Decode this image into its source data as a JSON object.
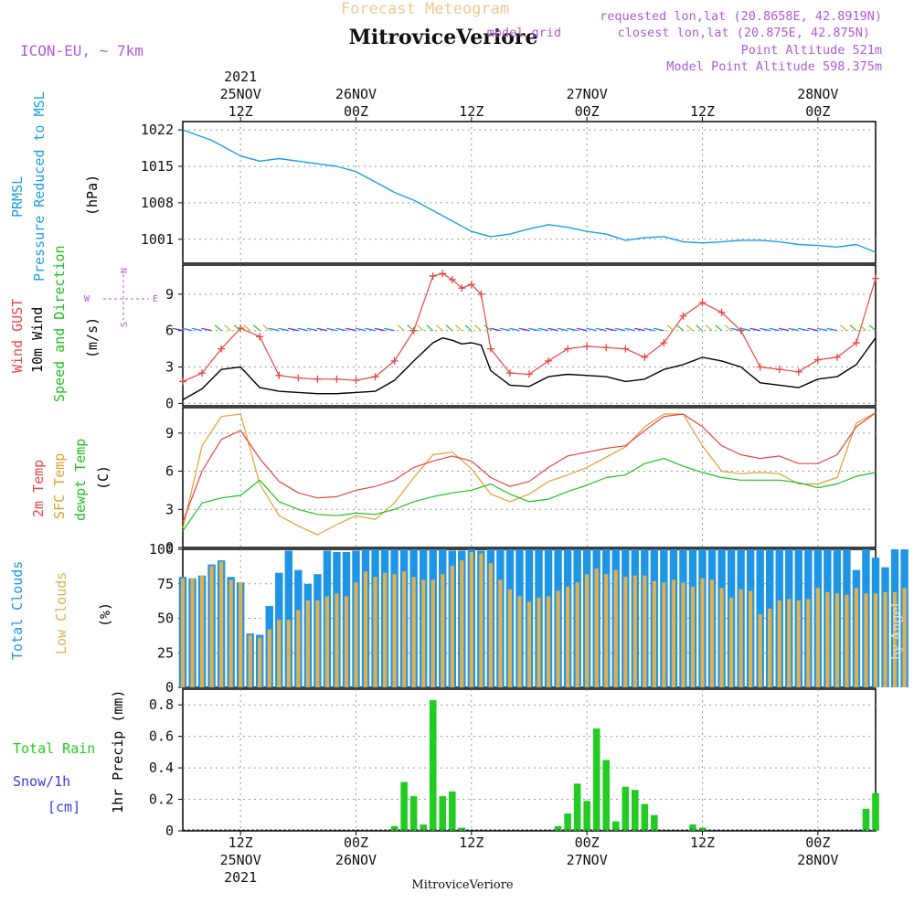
{
  "header": {
    "title": "Forecast Meteogram",
    "location": "MitroviceVeriore",
    "model": "ICON-EU, ~ 7km",
    "requested": "requested lon,lat (20.8658E, 42.8919N)",
    "closest": "closest lon,lat (20.875E, 42.875N)",
    "closest_prefix": "model grid",
    "point_alt": "Point Altitude 521m",
    "model_alt": "Model Point Altitude 598.375m"
  },
  "footer": {
    "location": "MitroviceVeriore",
    "credit": "by Angel"
  },
  "colors": {
    "pressure": "#1a9ee8",
    "gust": "#e84545",
    "wind": "#000000",
    "dir": "#22c022",
    "t2m": "#e84545",
    "sfc": "#e0a030",
    "dewpt": "#22c022",
    "tcc": "#1f95e6",
    "lcc": "#e0b050",
    "rain": "#22cc22",
    "snow": "#3a3ae6",
    "purple": "#b05ad8",
    "title": "#f0c890"
  },
  "time_axis": {
    "hours_range": [
      6,
      78
    ],
    "ticks": [
      {
        "h": 12,
        "top": [
          "2021",
          "25NOV",
          "12Z"
        ],
        "bottom": [
          "12Z",
          "25NOV",
          "2021"
        ]
      },
      {
        "h": 24,
        "top": [
          "26NOV",
          "00Z"
        ],
        "bottom": [
          "00Z",
          "26NOV"
        ]
      },
      {
        "h": 36,
        "top": [
          "12Z"
        ],
        "bottom": [
          "12Z"
        ]
      },
      {
        "h": 48,
        "top": [
          "27NOV",
          "00Z"
        ],
        "bottom": [
          "00Z",
          "27NOV"
        ]
      },
      {
        "h": 60,
        "top": [
          "12Z"
        ],
        "bottom": [
          "12Z"
        ]
      },
      {
        "h": 72,
        "top": [
          "28NOV",
          "00Z"
        ],
        "bottom": [
          "00Z",
          "28NOV"
        ]
      }
    ]
  },
  "panels": {
    "pressure": {
      "labels": [
        "PRMSL",
        "Pressure Reduced to MSL"
      ],
      "unit": "(hPa)"
    },
    "wind": {
      "labels": [
        "Wind GUST",
        "10m Wind",
        "Speed and Direction"
      ],
      "unit": "(m/s)",
      "compass": [
        "N",
        "W",
        "E",
        "S"
      ]
    },
    "temp": {
      "labels": [
        "2m Temp",
        "SFC Temp",
        "dewpt Temp"
      ],
      "unit": "(C)"
    },
    "cloud": {
      "labels": [
        "Total Clouds",
        "Low Clouds"
      ],
      "unit": "(%)"
    },
    "precip": {
      "labels": [
        "Total Rain",
        "Snow/1h",
        "[cm]"
      ],
      "unit": "1hr Precip (mm)"
    }
  },
  "chart_data": [
    {
      "type": "line",
      "title": "PRMSL Pressure Reduced to MSL",
      "ylabel": "(hPa)",
      "ylim": [
        996.4,
        1023.6
      ],
      "yticks": [
        1001,
        1008,
        1015,
        1022
      ],
      "x": [
        6,
        9,
        12,
        14,
        16,
        18,
        20,
        22,
        24,
        26,
        28,
        30,
        32,
        34,
        36,
        38,
        40,
        42,
        44,
        46,
        48,
        50,
        52,
        54,
        56,
        58,
        60,
        62,
        64,
        66,
        68,
        70,
        72,
        74,
        76,
        78
      ],
      "values": [
        1022,
        1020,
        1017,
        1016,
        1016.5,
        1016,
        1015.5,
        1015,
        1014,
        1012,
        1010,
        1008.5,
        1006.5,
        1004.5,
        1002.5,
        1001.5,
        1002,
        1003,
        1003.8,
        1003.3,
        1002.5,
        1002,
        1000.8,
        1001.3,
        1001.5,
        1000.5,
        1000.3,
        1000.5,
        1000.8,
        1000.8,
        1000.5,
        1000,
        999.8,
        999.5,
        1000,
        998.5
      ]
    },
    {
      "type": "line",
      "title": "Wind GUST / 10m Wind Speed and Direction",
      "ylabel": "(m/s)",
      "ylim": [
        -0.2,
        11.4
      ],
      "yticks": [
        0,
        3,
        6,
        9
      ],
      "x": [
        6,
        8,
        10,
        12,
        14,
        16,
        18,
        20,
        22,
        24,
        26,
        28,
        30,
        32,
        33,
        34,
        35,
        36,
        37,
        38,
        40,
        42,
        44,
        46,
        48,
        50,
        52,
        54,
        56,
        58,
        60,
        62,
        64,
        66,
        68,
        70,
        72,
        74,
        76,
        78
      ],
      "series": [
        {
          "name": "Wind GUST",
          "values": [
            1.8,
            2.5,
            4.5,
            6.2,
            5.5,
            2.3,
            2.1,
            2.0,
            2.0,
            1.9,
            2.2,
            3.5,
            6.0,
            10.5,
            10.7,
            10.2,
            9.5,
            9.8,
            9.0,
            4.5,
            2.5,
            2.4,
            3.5,
            4.5,
            4.7,
            4.6,
            4.5,
            3.8,
            5.0,
            7.2,
            8.3,
            7.5,
            6.0,
            3.0,
            2.8,
            2.6,
            3.6,
            3.8,
            5.0,
            10.3
          ]
        },
        {
          "name": "10m Wind",
          "values": [
            0.3,
            1.2,
            2.8,
            3.0,
            1.3,
            1.0,
            0.9,
            0.8,
            0.8,
            0.9,
            1.0,
            1.9,
            3.5,
            5.0,
            5.4,
            5.2,
            4.9,
            5.0,
            4.8,
            2.7,
            1.5,
            1.4,
            2.2,
            2.4,
            2.3,
            2.2,
            1.8,
            2.0,
            2.8,
            3.2,
            3.8,
            3.5,
            3.0,
            1.7,
            1.5,
            1.3,
            2.0,
            2.2,
            3.2,
            5.4
          ]
        }
      ],
      "direction_arrows_note": "wind direction shown as colored arrows at y=6"
    },
    {
      "type": "line",
      "title": "2m Temp / SFC Temp / dewpt Temp",
      "ylabel": "(C)",
      "ylim": [
        0,
        11
      ],
      "yticks": [
        0,
        3,
        6,
        9
      ],
      "x": [
        6,
        8,
        10,
        12,
        14,
        16,
        18,
        20,
        22,
        24,
        26,
        28,
        30,
        32,
        34,
        36,
        38,
        40,
        42,
        44,
        46,
        48,
        50,
        52,
        54,
        56,
        58,
        60,
        62,
        64,
        66,
        68,
        70,
        72,
        74,
        76,
        78
      ],
      "series": [
        {
          "name": "2m Temp",
          "values": [
            2.0,
            6.0,
            8.5,
            9.2,
            7.0,
            5.2,
            4.3,
            3.9,
            4.0,
            4.5,
            4.8,
            5.3,
            6.3,
            6.8,
            7.2,
            6.8,
            5.5,
            4.8,
            5.2,
            6.3,
            7.2,
            7.5,
            7.8,
            8.0,
            9.2,
            10.3,
            10.5,
            9.5,
            8.0,
            7.3,
            7.0,
            7.2,
            6.6,
            6.6,
            7.3,
            9.5,
            10.6
          ]
        },
        {
          "name": "SFC Temp",
          "values": [
            1.5,
            8.0,
            10.3,
            10.5,
            5.0,
            2.5,
            1.7,
            1.0,
            1.8,
            2.5,
            2.2,
            3.5,
            5.5,
            7.3,
            7.5,
            6.2,
            4.2,
            3.6,
            4.2,
            5.2,
            5.7,
            6.3,
            7.1,
            7.9,
            9.5,
            10.5,
            10.5,
            8.0,
            6.0,
            5.8,
            5.9,
            5.8,
            5.0,
            5.0,
            5.5,
            9.8,
            10.6
          ]
        },
        {
          "name": "dewpt Temp",
          "values": [
            1.3,
            3.5,
            3.9,
            4.1,
            5.3,
            3.6,
            3.0,
            2.6,
            2.5,
            2.7,
            2.6,
            3.0,
            3.6,
            4.0,
            4.3,
            4.5,
            5.0,
            4.2,
            3.6,
            3.8,
            4.4,
            4.9,
            5.5,
            5.7,
            6.6,
            7.0,
            6.4,
            5.9,
            5.5,
            5.3,
            5.3,
            5.3,
            5.1,
            4.7,
            5.0,
            5.6,
            5.9
          ]
        }
      ]
    },
    {
      "type": "bar",
      "title": "Total Clouds / Low Clouds",
      "ylabel": "(%)",
      "ylim": [
        0,
        100
      ],
      "yticks": [
        0,
        25,
        50,
        75,
        100
      ],
      "x_start": 6,
      "x_step": 1,
      "series": [
        {
          "name": "Total Clouds",
          "values": [
            80,
            79,
            81,
            89,
            92,
            80,
            76,
            39,
            38,
            59,
            83,
            99,
            85,
            75,
            82,
            99,
            98,
            98,
            99,
            100,
            100,
            100,
            100,
            100,
            100,
            100,
            100,
            100,
            99,
            99,
            100,
            99,
            100,
            100,
            100,
            100,
            100,
            100,
            100,
            100,
            100,
            100,
            100,
            100,
            100,
            100,
            100,
            100,
            100,
            100,
            100,
            100,
            100,
            100,
            100,
            100,
            100,
            100,
            100,
            100,
            100,
            100,
            100,
            100,
            100,
            100,
            100,
            100,
            100,
            100,
            85,
            100,
            94,
            87,
            100,
            100
          ]
        },
        {
          "name": "Low Clouds",
          "values": [
            79,
            79,
            81,
            88,
            91,
            78,
            76,
            38,
            36,
            42,
            49,
            49,
            56,
            63,
            63,
            66,
            68,
            66,
            76,
            84,
            80,
            83,
            82,
            84,
            80,
            78,
            78,
            82,
            88,
            92,
            98,
            97,
            90,
            78,
            71,
            66,
            62,
            65,
            66,
            70,
            73,
            76,
            82,
            86,
            82,
            85,
            80,
            81,
            81,
            77,
            76,
            78,
            76,
            73,
            79,
            78,
            72,
            65,
            71,
            70,
            53,
            57,
            63,
            64,
            63,
            64,
            72,
            69,
            68,
            67,
            72,
            68,
            68,
            69,
            69,
            72
          ]
        }
      ]
    },
    {
      "type": "bar",
      "title": "1hr Precip (mm)",
      "ylabel": "1hr Precip (mm)",
      "ylim": [
        0,
        0.9
      ],
      "yticks": [
        0,
        0.2,
        0.4,
        0.6,
        0.8
      ],
      "bars": [
        {
          "x": 28,
          "v": 0.03
        },
        {
          "x": 29,
          "v": 0.31
        },
        {
          "x": 30,
          "v": 0.22
        },
        {
          "x": 31,
          "v": 0.04
        },
        {
          "x": 32,
          "v": 0.83
        },
        {
          "x": 33,
          "v": 0.22
        },
        {
          "x": 34,
          "v": 0.25
        },
        {
          "x": 35,
          "v": 0.02
        },
        {
          "x": 45,
          "v": 0.03
        },
        {
          "x": 46,
          "v": 0.11
        },
        {
          "x": 47,
          "v": 0.3
        },
        {
          "x": 48,
          "v": 0.19
        },
        {
          "x": 49,
          "v": 0.65
        },
        {
          "x": 50,
          "v": 0.45
        },
        {
          "x": 51,
          "v": 0.06
        },
        {
          "x": 52,
          "v": 0.28
        },
        {
          "x": 53,
          "v": 0.26
        },
        {
          "x": 54,
          "v": 0.17
        },
        {
          "x": 55,
          "v": 0.1
        },
        {
          "x": 59,
          "v": 0.04
        },
        {
          "x": 60,
          "v": 0.02
        },
        {
          "x": 77,
          "v": 0.14
        },
        {
          "x": 78,
          "v": 0.24
        }
      ]
    }
  ]
}
